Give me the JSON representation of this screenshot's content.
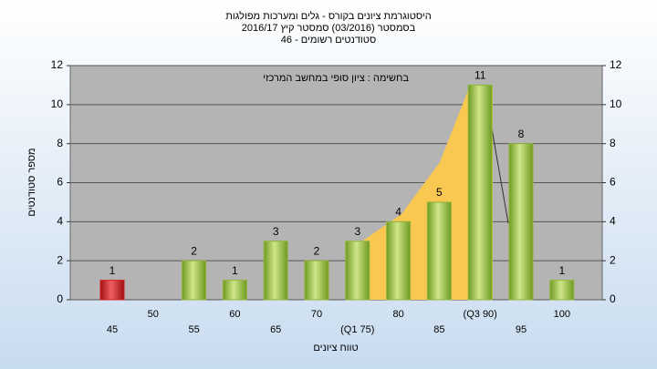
{
  "chart_data": {
    "type": "bar",
    "title": "היסטוגרמת ציונים בקורס - גלים ומערכות מפולגות",
    "subtitle": "בסמסטר  (03/2016)  סמסטר קיץ  2016/17",
    "subtitle2": "סטודנטים רשומים - 46",
    "annotation": "בחשימה : ציון סופי במחשב המרכזי",
    "x_label": "טווח ציונים",
    "y_label": "מספר סטודנטים",
    "categories": [
      "45",
      "50",
      "55",
      "60",
      "65",
      "70",
      "(Q1 75)",
      "80",
      "85",
      "(Q3 90)",
      "95",
      "100"
    ],
    "values": [
      1,
      0,
      2,
      1,
      3,
      2,
      3,
      4,
      5,
      11,
      8,
      1
    ],
    "colors": [
      "#d42020",
      "#8fb53a",
      "#8fb53a",
      "#8fb53a",
      "#8fb53a",
      "#8fb53a",
      "#8fb53a",
      "#8fb53a",
      "#8fb53a",
      "#8fb53a",
      "#8fb53a",
      "#8fb53a"
    ],
    "ylim": [
      0,
      12
    ],
    "yticks": [
      0,
      2,
      4,
      6,
      8,
      10,
      12
    ],
    "y2lim": [
      0,
      12
    ],
    "y2ticks": [
      0,
      2,
      4,
      6,
      8,
      10,
      12
    ],
    "grid": true
  }
}
